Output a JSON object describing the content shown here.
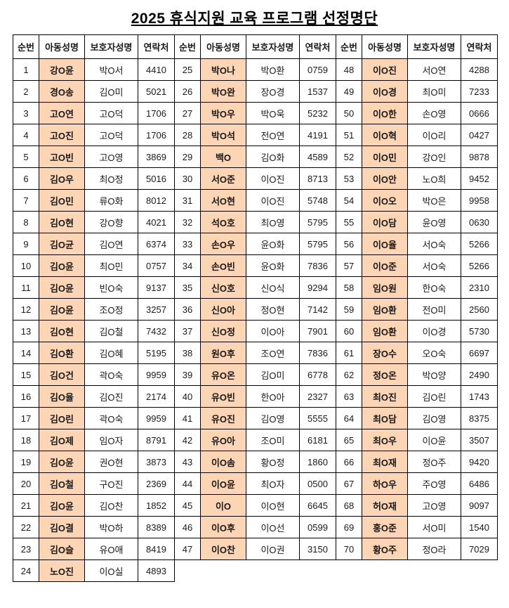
{
  "title": "2025 휴식지원 교육 프로그램 선정명단",
  "colors": {
    "highlight": "#fcd5b4",
    "border": "#000000"
  },
  "table": {
    "headers": [
      "순번",
      "아동성명",
      "보호자성명",
      "연락처"
    ],
    "header_repeat": 3,
    "rows_per_section": 24,
    "entries": [
      {
        "no": "1",
        "child": "강O윤",
        "guardian": "박O서",
        "contact": "4410"
      },
      {
        "no": "2",
        "child": "경O송",
        "guardian": "김O미",
        "contact": "5021"
      },
      {
        "no": "3",
        "child": "고O연",
        "guardian": "고O덕",
        "contact": "1706"
      },
      {
        "no": "4",
        "child": "고O진",
        "guardian": "고O덕",
        "contact": "1706"
      },
      {
        "no": "5",
        "child": "고O빈",
        "guardian": "고O영",
        "contact": "3869"
      },
      {
        "no": "6",
        "child": "김O우",
        "guardian": "최O정",
        "contact": "5016"
      },
      {
        "no": "7",
        "child": "김O민",
        "guardian": "류O화",
        "contact": "8012"
      },
      {
        "no": "8",
        "child": "김O현",
        "guardian": "강O향",
        "contact": "4021"
      },
      {
        "no": "9",
        "child": "김O균",
        "guardian": "김O연",
        "contact": "6374"
      },
      {
        "no": "10",
        "child": "김O윤",
        "guardian": "최O민",
        "contact": "0757"
      },
      {
        "no": "11",
        "child": "김O윤",
        "guardian": "빈O숙",
        "contact": "9137"
      },
      {
        "no": "12",
        "child": "김O윤",
        "guardian": "조O정",
        "contact": "3257"
      },
      {
        "no": "13",
        "child": "김O현",
        "guardian": "김O철",
        "contact": "7432"
      },
      {
        "no": "14",
        "child": "김O환",
        "guardian": "김O혜",
        "contact": "5195"
      },
      {
        "no": "15",
        "child": "김O건",
        "guardian": "곽O숙",
        "contact": "9959"
      },
      {
        "no": "16",
        "child": "김O율",
        "guardian": "김O진",
        "contact": "2174"
      },
      {
        "no": "17",
        "child": "김O린",
        "guardian": "곽O숙",
        "contact": "9959"
      },
      {
        "no": "18",
        "child": "김O제",
        "guardian": "임O자",
        "contact": "8791"
      },
      {
        "no": "19",
        "child": "김O윤",
        "guardian": "권O현",
        "contact": "3873"
      },
      {
        "no": "20",
        "child": "김O철",
        "guardian": "구O진",
        "contact": "2369"
      },
      {
        "no": "21",
        "child": "김O윤",
        "guardian": "김O찬",
        "contact": "1852"
      },
      {
        "no": "22",
        "child": "김O결",
        "guardian": "박O하",
        "contact": "8389"
      },
      {
        "no": "23",
        "child": "김O슬",
        "guardian": "유O애",
        "contact": "8419"
      },
      {
        "no": "24",
        "child": "노O진",
        "guardian": "이O실",
        "contact": "4893"
      },
      {
        "no": "25",
        "child": "박O나",
        "guardian": "박O환",
        "contact": "0759"
      },
      {
        "no": "26",
        "child": "박O완",
        "guardian": "장O경",
        "contact": "1537"
      },
      {
        "no": "27",
        "child": "박O우",
        "guardian": "박O욱",
        "contact": "5232"
      },
      {
        "no": "28",
        "child": "박O석",
        "guardian": "전O연",
        "contact": "4191"
      },
      {
        "no": "29",
        "child": "백O",
        "guardian": "김O화",
        "contact": "4589"
      },
      {
        "no": "30",
        "child": "서O준",
        "guardian": "이O진",
        "contact": "8713"
      },
      {
        "no": "31",
        "child": "서O현",
        "guardian": "이O진",
        "contact": "5748"
      },
      {
        "no": "32",
        "child": "석O호",
        "guardian": "최O영",
        "contact": "5795"
      },
      {
        "no": "33",
        "child": "손O우",
        "guardian": "윤O화",
        "contact": "5795"
      },
      {
        "no": "34",
        "child": "손O빈",
        "guardian": "윤O화",
        "contact": "7836"
      },
      {
        "no": "35",
        "child": "신O호",
        "guardian": "신O식",
        "contact": "9294"
      },
      {
        "no": "36",
        "child": "신O아",
        "guardian": "정O현",
        "contact": "7142"
      },
      {
        "no": "37",
        "child": "신O정",
        "guardian": "이O아",
        "contact": "7901"
      },
      {
        "no": "38",
        "child": "원O후",
        "guardian": "조O연",
        "contact": "7836"
      },
      {
        "no": "39",
        "child": "유O온",
        "guardian": "김O미",
        "contact": "6778"
      },
      {
        "no": "40",
        "child": "유O빈",
        "guardian": "한O아",
        "contact": "2327"
      },
      {
        "no": "41",
        "child": "유O진",
        "guardian": "김O영",
        "contact": "5555"
      },
      {
        "no": "42",
        "child": "유O아",
        "guardian": "조O미",
        "contact": "6181"
      },
      {
        "no": "43",
        "child": "이O솜",
        "guardian": "황O정",
        "contact": "1860"
      },
      {
        "no": "44",
        "child": "이O윤",
        "guardian": "최O자",
        "contact": "0500"
      },
      {
        "no": "45",
        "child": "이O",
        "guardian": "이O현",
        "contact": "6645"
      },
      {
        "no": "46",
        "child": "이O후",
        "guardian": "이O선",
        "contact": "0599"
      },
      {
        "no": "47",
        "child": "이O찬",
        "guardian": "이O권",
        "contact": "3150"
      },
      {
        "no": "48",
        "child": "이O진",
        "guardian": "서O연",
        "contact": "4288"
      },
      {
        "no": "49",
        "child": "이O경",
        "guardian": "최O미",
        "contact": "7233"
      },
      {
        "no": "50",
        "child": "이O한",
        "guardian": "손O영",
        "contact": "0666"
      },
      {
        "no": "51",
        "child": "이O혁",
        "guardian": "이O리",
        "contact": "0427"
      },
      {
        "no": "52",
        "child": "이O민",
        "guardian": "강O인",
        "contact": "9878"
      },
      {
        "no": "53",
        "child": "이O안",
        "guardian": "노O희",
        "contact": "9452"
      },
      {
        "no": "54",
        "child": "이O오",
        "guardian": "박O은",
        "contact": "9958"
      },
      {
        "no": "55",
        "child": "이O담",
        "guardian": "윤O영",
        "contact": "0630"
      },
      {
        "no": "56",
        "child": "이O율",
        "guardian": "서O숙",
        "contact": "5266"
      },
      {
        "no": "57",
        "child": "이O준",
        "guardian": "서O숙",
        "contact": "5266"
      },
      {
        "no": "58",
        "child": "임O원",
        "guardian": "한O숙",
        "contact": "2310"
      },
      {
        "no": "59",
        "child": "임O환",
        "guardian": "전O미",
        "contact": "2560"
      },
      {
        "no": "60",
        "child": "임O환",
        "guardian": "이O경",
        "contact": "5730"
      },
      {
        "no": "61",
        "child": "장O수",
        "guardian": "오O숙",
        "contact": "6697"
      },
      {
        "no": "62",
        "child": "정O온",
        "guardian": "박O양",
        "contact": "2490"
      },
      {
        "no": "63",
        "child": "최O진",
        "guardian": "김O린",
        "contact": "1743"
      },
      {
        "no": "64",
        "child": "최O담",
        "guardian": "김O영",
        "contact": "8375"
      },
      {
        "no": "65",
        "child": "최O우",
        "guardian": "이O윤",
        "contact": "3507"
      },
      {
        "no": "66",
        "child": "최O재",
        "guardian": "정O주",
        "contact": "9420"
      },
      {
        "no": "67",
        "child": "하O우",
        "guardian": "주O영",
        "contact": "6486"
      },
      {
        "no": "68",
        "child": "허O재",
        "guardian": "고O영",
        "contact": "9097"
      },
      {
        "no": "69",
        "child": "홍O준",
        "guardian": "서O미",
        "contact": "1540"
      },
      {
        "no": "70",
        "child": "황O주",
        "guardian": "정O라",
        "contact": "7029"
      }
    ]
  }
}
